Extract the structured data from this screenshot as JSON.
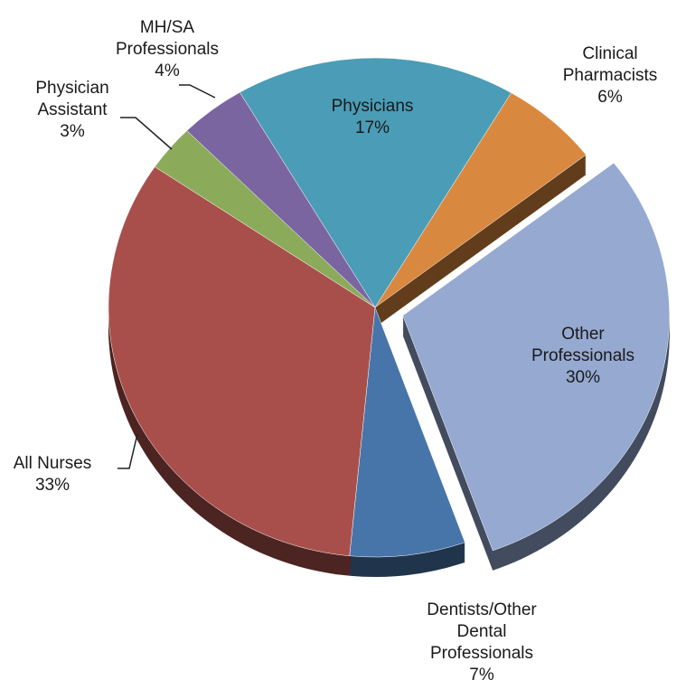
{
  "chart_data": {
    "type": "pie",
    "categories": [
      "Physicians",
      "Clinical Pharmacists",
      "Other Professionals",
      "Dentists/Other Dental Professionals",
      "All Nurses",
      "Physician Assistant",
      "MH/SA Professionals"
    ],
    "values": [
      17,
      6,
      30,
      7,
      33,
      3,
      4
    ],
    "value_labels": [
      "17%",
      "6%",
      "30%",
      "7%",
      "33%",
      "3%",
      "4%"
    ],
    "colors": [
      "#4b9cb6",
      "#d9883f",
      "#95a9d1",
      "#4775a9",
      "#a94f4b",
      "#8bab5b",
      "#7b65a1"
    ],
    "exploded": "Other Professionals"
  }
}
